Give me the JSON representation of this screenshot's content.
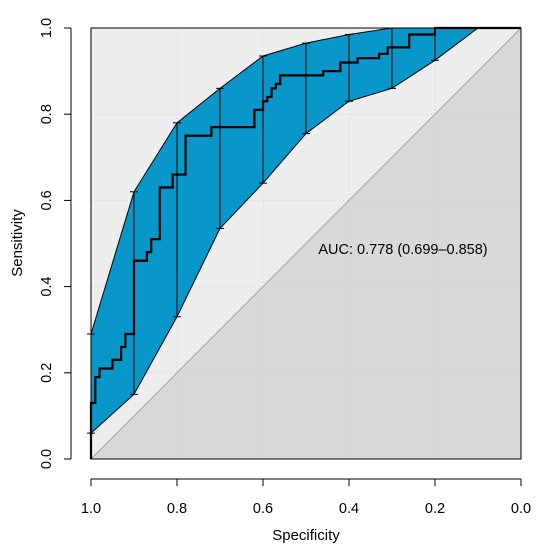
{
  "chart_data": {
    "type": "line",
    "title": "",
    "xlabel": "Specificity",
    "ylabel": "Sensitivity",
    "x_reversed": true,
    "xlim": [
      1.0,
      0.0
    ],
    "ylim": [
      0.0,
      1.0
    ],
    "x_ticks": [
      "1.0",
      "0.8",
      "0.6",
      "0.4",
      "0.2",
      "0.0"
    ],
    "y_ticks": [
      "0.0",
      "0.2",
      "0.4",
      "0.6",
      "0.8",
      "1.0"
    ],
    "grid": true,
    "annotation": "AUC: 0.778 (0.699–0.858)",
    "colors": {
      "ci_band": "#0996c8",
      "upper_shade": "#eeeeee",
      "lower_shade": "#d9d9d9",
      "curve": "#000000",
      "diagonal": "#a0a0a0",
      "grid": "#d0d0d0"
    },
    "roc_curve": {
      "specificity": [
        1.0,
        1.0,
        0.99,
        0.99,
        0.98,
        0.98,
        0.95,
        0.95,
        0.93,
        0.93,
        0.92,
        0.92,
        0.9,
        0.9,
        0.87,
        0.87,
        0.86,
        0.86,
        0.84,
        0.84,
        0.81,
        0.81,
        0.78,
        0.78,
        0.76,
        0.76,
        0.72,
        0.72,
        0.67,
        0.67,
        0.62,
        0.62,
        0.6,
        0.6,
        0.59,
        0.59,
        0.58,
        0.58,
        0.57,
        0.57,
        0.56,
        0.56,
        0.55,
        0.55,
        0.53,
        0.53,
        0.46,
        0.46,
        0.42,
        0.42,
        0.38,
        0.38,
        0.33,
        0.33,
        0.31,
        0.31,
        0.26,
        0.26,
        0.2,
        0.2,
        0.1,
        0.0
      ],
      "sensitivity": [
        0.0,
        0.13,
        0.13,
        0.19,
        0.19,
        0.21,
        0.21,
        0.23,
        0.23,
        0.26,
        0.26,
        0.29,
        0.29,
        0.46,
        0.46,
        0.48,
        0.48,
        0.51,
        0.51,
        0.63,
        0.63,
        0.66,
        0.66,
        0.75,
        0.75,
        0.75,
        0.75,
        0.77,
        0.77,
        0.77,
        0.77,
        0.81,
        0.81,
        0.83,
        0.83,
        0.84,
        0.84,
        0.86,
        0.86,
        0.87,
        0.87,
        0.89,
        0.89,
        0.89,
        0.89,
        0.89,
        0.89,
        0.9,
        0.9,
        0.92,
        0.92,
        0.93,
        0.93,
        0.94,
        0.94,
        0.955,
        0.955,
        0.985,
        0.985,
        1.0,
        1.0,
        1.0
      ]
    },
    "ci_band": {
      "specificity": [
        1.0,
        0.9,
        0.8,
        0.7,
        0.6,
        0.5,
        0.4,
        0.3,
        0.2,
        0.1,
        0.0
      ],
      "upper": [
        0.29,
        0.62,
        0.78,
        0.86,
        0.935,
        0.965,
        0.985,
        1.0,
        1.0,
        1.0,
        1.0
      ],
      "lower": [
        0.06,
        0.15,
        0.33,
        0.535,
        0.64,
        0.755,
        0.83,
        0.86,
        0.925,
        1.0,
        1.0
      ]
    }
  }
}
